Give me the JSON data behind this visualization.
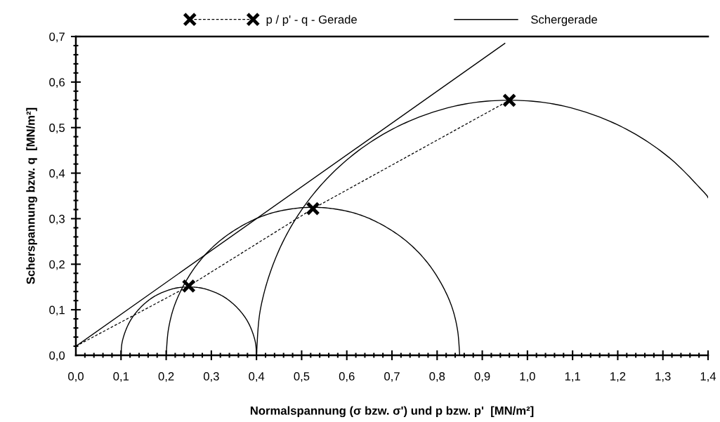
{
  "chart_data": {
    "type": "line",
    "xlabel": "Normalspannung (σ bzw. σ') und p bzw. p'  [MN/m²]",
    "ylabel": "Scherspannung bzw. q  [MN/m²]",
    "xlim": [
      0,
      1.4
    ],
    "ylim": [
      0,
      0.7
    ],
    "xticks": [
      {
        "value": 0,
        "label": "0,0"
      },
      {
        "value": 0.1,
        "label": "0,1"
      },
      {
        "value": 0.2,
        "label": "0,2"
      },
      {
        "value": 0.3,
        "label": "0,3"
      },
      {
        "value": 0.4,
        "label": "0,4"
      },
      {
        "value": 0.5,
        "label": "0,5"
      },
      {
        "value": 0.6,
        "label": "0,6"
      },
      {
        "value": 0.7,
        "label": "0,7"
      },
      {
        "value": 0.8,
        "label": "0,8"
      },
      {
        "value": 0.9,
        "label": "0,9"
      },
      {
        "value": 1.0,
        "label": "1,0"
      },
      {
        "value": 1.1,
        "label": "1,1"
      },
      {
        "value": 1.2,
        "label": "1,2"
      },
      {
        "value": 1.3,
        "label": "1,3"
      },
      {
        "value": 1.4,
        "label": "1,4"
      }
    ],
    "yticks": [
      {
        "value": 0,
        "label": "0,0"
      },
      {
        "value": 0.1,
        "label": "0,1"
      },
      {
        "value": 0.2,
        "label": "0,2"
      },
      {
        "value": 0.3,
        "label": "0,3"
      },
      {
        "value": 0.4,
        "label": "0,4"
      },
      {
        "value": 0.5,
        "label": "0,5"
      },
      {
        "value": 0.6,
        "label": "0,6"
      },
      {
        "value": 0.7,
        "label": "0,7"
      }
    ],
    "grid": false,
    "legend": "top",
    "series": [
      {
        "name": "p / p' - q - Gerade",
        "color": "#000000",
        "marker": "cross",
        "line_style": "dashed",
        "x": [
          0.25,
          0.525,
          0.96
        ],
        "values": [
          0.152,
          0.322,
          0.56
        ]
      },
      {
        "name": "Schergerade",
        "color": "#000000",
        "marker": "none",
        "line_style": "solid",
        "x": [
          0,
          0.95
        ],
        "values": [
          0.02,
          0.685
        ]
      },
      {
        "color": "#000000",
        "marker": "none",
        "line_style": "dashed",
        "x": [
          0,
          0.25
        ],
        "values": [
          0.02,
          0.152
        ]
      },
      {
        "color": "#000000",
        "marker": "none",
        "line_style": "solid",
        "x": [
          0.1,
          0.102,
          0.109,
          0.12,
          0.135,
          0.154,
          0.175,
          0.199,
          0.224,
          0.25,
          0.276,
          0.301,
          0.325,
          0.346,
          0.365,
          0.38,
          0.391,
          0.398,
          0.4
        ],
        "values": [
          0,
          0.026,
          0.051,
          0.075,
          0.096,
          0.115,
          0.13,
          0.141,
          0.148,
          0.15,
          0.148,
          0.141,
          0.13,
          0.115,
          0.096,
          0.075,
          0.051,
          0.026,
          0
        ]
      },
      {
        "color": "#000000",
        "marker": "none",
        "line_style": "solid",
        "x": [
          0.2,
          0.205,
          0.219,
          0.244,
          0.276,
          0.316,
          0.362,
          0.414,
          0.468,
          0.525,
          0.582,
          0.636,
          0.688,
          0.734,
          0.774,
          0.806,
          0.831,
          0.845,
          0.85
        ],
        "values": [
          0,
          0.057,
          0.111,
          0.163,
          0.209,
          0.249,
          0.281,
          0.306,
          0.32,
          0.325,
          0.32,
          0.306,
          0.281,
          0.249,
          0.209,
          0.163,
          0.111,
          0.057,
          0
        ]
      },
      {
        "color": "#000000",
        "marker": "none",
        "line_style": "solid",
        "x": [
          0.4,
          0.408,
          0.434,
          0.475,
          0.531,
          0.6,
          0.68,
          0.768,
          0.863,
          0.96,
          1.057,
          1.152,
          1.24,
          1.32,
          1.389,
          1.4
        ],
        "values": [
          0,
          0.097,
          0.192,
          0.28,
          0.36,
          0.429,
          0.485,
          0.526,
          0.552,
          0.56,
          0.552,
          0.526,
          0.485,
          0.429,
          0.36,
          0.346
        ]
      }
    ]
  }
}
